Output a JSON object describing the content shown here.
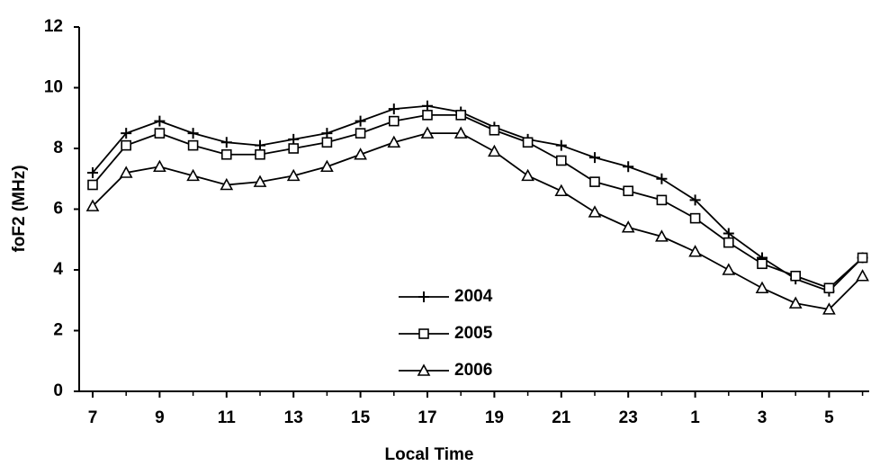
{
  "chart_data": {
    "type": "line",
    "x_label": "Local Time",
    "y_label": "foF2 (MHz)",
    "categories": [
      7,
      null,
      9,
      null,
      11,
      null,
      13,
      null,
      15,
      null,
      17,
      null,
      19,
      null,
      21,
      null,
      23,
      null,
      1,
      null,
      3,
      null,
      5,
      null
    ],
    "ylim": [
      0,
      12
    ],
    "yticks": [
      0,
      2,
      4,
      6,
      8,
      10,
      12
    ],
    "legend": "lower-center",
    "series": [
      {
        "name": "2004",
        "color": "#000000",
        "marker": "plus",
        "values": [
          7.2,
          8.5,
          8.9,
          8.5,
          8.2,
          8.1,
          8.3,
          8.5,
          8.9,
          9.3,
          9.4,
          9.2,
          8.7,
          8.3,
          8.1,
          7.7,
          7.4,
          7.0,
          6.3,
          5.2,
          4.4,
          3.7,
          3.3,
          4.4
        ]
      },
      {
        "name": "2005",
        "color": "#000000",
        "marker": "square",
        "values": [
          6.8,
          8.1,
          8.5,
          8.1,
          7.8,
          7.8,
          8.0,
          8.2,
          8.5,
          8.9,
          9.1,
          9.1,
          8.6,
          8.2,
          7.6,
          6.9,
          6.6,
          6.3,
          5.7,
          4.9,
          4.2,
          3.8,
          3.4,
          4.4
        ]
      },
      {
        "name": "2006",
        "color": "#000000",
        "marker": "triangle",
        "values": [
          6.1,
          7.2,
          7.4,
          7.1,
          6.8,
          6.9,
          7.1,
          7.4,
          7.8,
          8.2,
          8.5,
          8.5,
          7.9,
          7.1,
          6.6,
          5.9,
          5.4,
          5.1,
          4.6,
          4.0,
          3.4,
          2.9,
          2.7,
          3.8
        ]
      }
    ]
  }
}
